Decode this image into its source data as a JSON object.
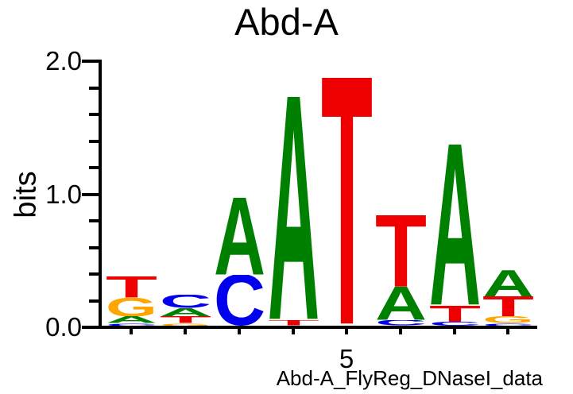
{
  "page": {
    "background": "#ffffff",
    "text_color": "#000000"
  },
  "chart_data": {
    "type": "sequence_logo",
    "title": "Abd-A",
    "ylabel": "bits",
    "footer": "Abd-A_FlyReg_DNaseI_data",
    "legend": null,
    "grid": false,
    "yaxis": {
      "range": [
        0,
        2.0
      ],
      "major_ticks": [
        {
          "value": 0,
          "label": "0.0"
        },
        {
          "value": 1,
          "label": "1.0"
        },
        {
          "value": 2,
          "label": "2.0"
        }
      ],
      "minor_step": 0.2
    },
    "xaxis": {
      "tick_positions": [
        1,
        2,
        3,
        4,
        5,
        6,
        7,
        8
      ],
      "labels": [
        {
          "position": 5,
          "label": "5"
        }
      ]
    },
    "colors": {
      "A": "#008000",
      "C": "#0000EE",
      "G": "#FFA500",
      "T": "#EE0000",
      "axis": "#000000"
    },
    "positions": [
      {
        "position": 1,
        "stack": [
          {
            "base": "C",
            "bits": 0.02
          },
          {
            "base": "A",
            "bits": 0.05
          },
          {
            "base": "G",
            "bits": 0.14
          },
          {
            "base": "T",
            "bits": 0.16
          }
        ],
        "total_bits": 0.37
      },
      {
        "position": 2,
        "stack": [
          {
            "base": "G",
            "bits": 0.02
          },
          {
            "base": "T",
            "bits": 0.05
          },
          {
            "base": "A",
            "bits": 0.06
          },
          {
            "base": "C",
            "bits": 0.1
          }
        ],
        "total_bits": 0.23
      },
      {
        "position": 3,
        "stack": [
          {
            "base": "C",
            "bits": 0.38
          },
          {
            "base": "A",
            "bits": 0.58
          }
        ],
        "total_bits": 0.96
      },
      {
        "position": 4,
        "stack": [
          {
            "base": "T",
            "bits": 0.04
          },
          {
            "base": "A",
            "bits": 1.68
          }
        ],
        "total_bits": 1.72
      },
      {
        "position": 5,
        "stack": [
          {
            "base": "T",
            "bits": 1.86
          }
        ],
        "total_bits": 1.86
      },
      {
        "position": 6,
        "stack": [
          {
            "base": "C",
            "bits": 0.04
          },
          {
            "base": "A",
            "bits": 0.25
          },
          {
            "base": "T",
            "bits": 0.54
          }
        ],
        "total_bits": 0.83
      },
      {
        "position": 7,
        "stack": [
          {
            "base": "C",
            "bits": 0.03
          },
          {
            "base": "T",
            "bits": 0.12
          },
          {
            "base": "A",
            "bits": 1.21
          }
        ],
        "total_bits": 1.36
      },
      {
        "position": 8,
        "stack": [
          {
            "base": "C",
            "bits": 0.02
          },
          {
            "base": "G",
            "bits": 0.05
          },
          {
            "base": "T",
            "bits": 0.15
          },
          {
            "base": "A",
            "bits": 0.2
          }
        ],
        "total_bits": 0.42
      }
    ]
  }
}
